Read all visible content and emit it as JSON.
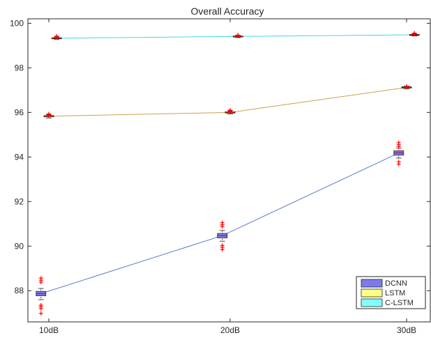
{
  "chart_data": {
    "type": "box-line",
    "title": "Overall Accuracy",
    "xlabel": "",
    "ylabel": "",
    "categories": [
      "10dB",
      "20dB",
      "30dB"
    ],
    "ylim": [
      86.6,
      100.2
    ],
    "yticks": [
      88,
      90,
      92,
      94,
      96,
      98,
      100
    ],
    "grid": false,
    "legend_position": "bottom-right",
    "series": [
      {
        "name": "DCNN",
        "color": "#7b7bef",
        "line_color": "#5a79c8",
        "x_offset": -0.12,
        "boxes": [
          {
            "median": 87.87,
            "q1": 87.77,
            "q3": 87.97,
            "whisker_low": 87.6,
            "whisker_high": 88.1,
            "outliers": [
              86.98,
              87.2,
              87.28,
              87.35,
              88.38,
              88.47,
              88.56
            ]
          },
          {
            "median": 90.47,
            "q1": 90.37,
            "q3": 90.57,
            "whisker_low": 90.22,
            "whisker_high": 90.7,
            "outliers": [
              89.85,
              89.95,
              90.03,
              90.88,
              90.96,
              91.05
            ]
          },
          {
            "median": 94.18,
            "q1": 94.08,
            "q3": 94.28,
            "whisker_low": 93.95,
            "whisker_high": 94.4,
            "outliers": [
              93.68,
              93.78,
              94.47,
              94.55,
              94.64
            ]
          }
        ]
      },
      {
        "name": "LSTM",
        "color": "#ffff80",
        "line_color": "#c8a050",
        "x_offset": 0.0,
        "boxes": [
          {
            "median": 95.83,
            "q1": 95.8,
            "q3": 95.86,
            "whisker_low": 95.75,
            "whisker_high": 95.91,
            "outliers": [
              95.88,
              95.93
            ]
          },
          {
            "median": 96.0,
            "q1": 95.97,
            "q3": 96.03,
            "whisker_low": 95.93,
            "whisker_high": 96.08,
            "outliers": [
              96.06,
              96.1
            ]
          },
          {
            "median": 97.12,
            "q1": 97.09,
            "q3": 97.15,
            "whisker_low": 97.05,
            "whisker_high": 97.18,
            "outliers": [
              97.14,
              97.17
            ]
          }
        ]
      },
      {
        "name": "C-LSTM",
        "color": "#80ffff",
        "line_color": "#40d8e8",
        "x_offset": 0.12,
        "boxes": [
          {
            "median": 99.33,
            "q1": 99.31,
            "q3": 99.35,
            "whisker_low": 99.28,
            "whisker_high": 99.39,
            "outliers": [
              99.38,
              99.42
            ]
          },
          {
            "median": 99.41,
            "q1": 99.39,
            "q3": 99.43,
            "whisker_low": 99.36,
            "whisker_high": 99.46,
            "outliers": [
              99.44,
              99.47
            ]
          },
          {
            "median": 99.48,
            "q1": 99.46,
            "q3": 99.5,
            "whisker_low": 99.43,
            "whisker_high": 99.53,
            "outliers": [
              99.51,
              99.56
            ]
          }
        ]
      }
    ]
  }
}
